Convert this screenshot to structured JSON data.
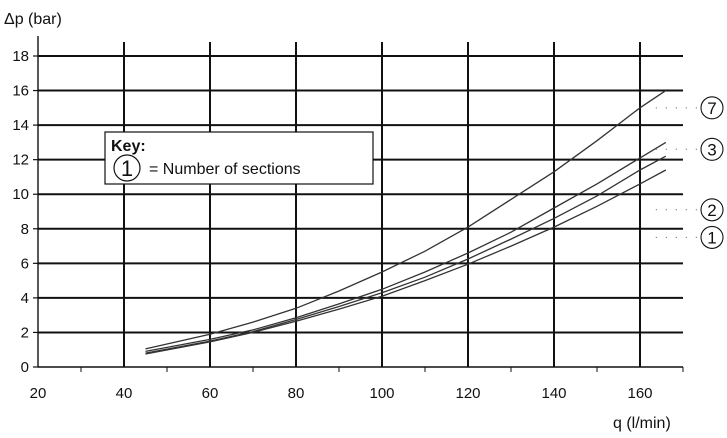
{
  "chart_data": {
    "type": "line",
    "ylabel": "Δp (bar)",
    "xlabel": "q (l/min)",
    "xlim": [
      20,
      170
    ],
    "ylim": [
      0,
      18
    ],
    "xticks": [
      20,
      40,
      60,
      80,
      100,
      120,
      140,
      160
    ],
    "yticks": [
      0,
      2,
      4,
      6,
      8,
      10,
      12,
      14,
      16,
      18
    ],
    "grid": true,
    "key": {
      "title": "Key:",
      "symbol": "1",
      "text": "= Number of sections"
    },
    "series": [
      {
        "name": "7",
        "x": [
          45,
          60,
          70,
          80,
          90,
          100,
          110,
          120,
          130,
          140,
          150,
          160,
          166
        ],
        "y": [
          1.05,
          1.9,
          2.6,
          3.4,
          4.4,
          5.5,
          6.7,
          8.1,
          9.7,
          11.3,
          13.1,
          15.0,
          16.0
        ]
      },
      {
        "name": "3",
        "x": [
          45,
          60,
          70,
          80,
          90,
          100,
          110,
          120,
          130,
          140,
          150,
          160,
          166
        ],
        "y": [
          0.9,
          1.6,
          2.15,
          2.85,
          3.65,
          4.5,
          5.5,
          6.6,
          7.8,
          9.2,
          10.6,
          12.1,
          13.0
        ]
      },
      {
        "name": "2",
        "x": [
          45,
          60,
          70,
          80,
          90,
          100,
          110,
          120,
          130,
          140,
          150,
          160,
          166
        ],
        "y": [
          0.8,
          1.5,
          2.05,
          2.75,
          3.5,
          4.3,
          5.2,
          6.25,
          7.4,
          8.6,
          9.9,
          11.4,
          12.2
        ]
      },
      {
        "name": "1",
        "x": [
          45,
          60,
          70,
          80,
          90,
          100,
          110,
          120,
          130,
          140,
          150,
          160,
          166
        ],
        "y": [
          0.75,
          1.45,
          2.0,
          2.65,
          3.35,
          4.1,
          5.0,
          5.95,
          7.0,
          8.1,
          9.3,
          10.6,
          11.4
        ]
      }
    ],
    "callouts": [
      {
        "label": "7",
        "value": 15.0
      },
      {
        "label": "3",
        "value": 12.6
      },
      {
        "label": "2",
        "value": 9.1
      },
      {
        "label": "1",
        "value": 7.5
      }
    ]
  }
}
